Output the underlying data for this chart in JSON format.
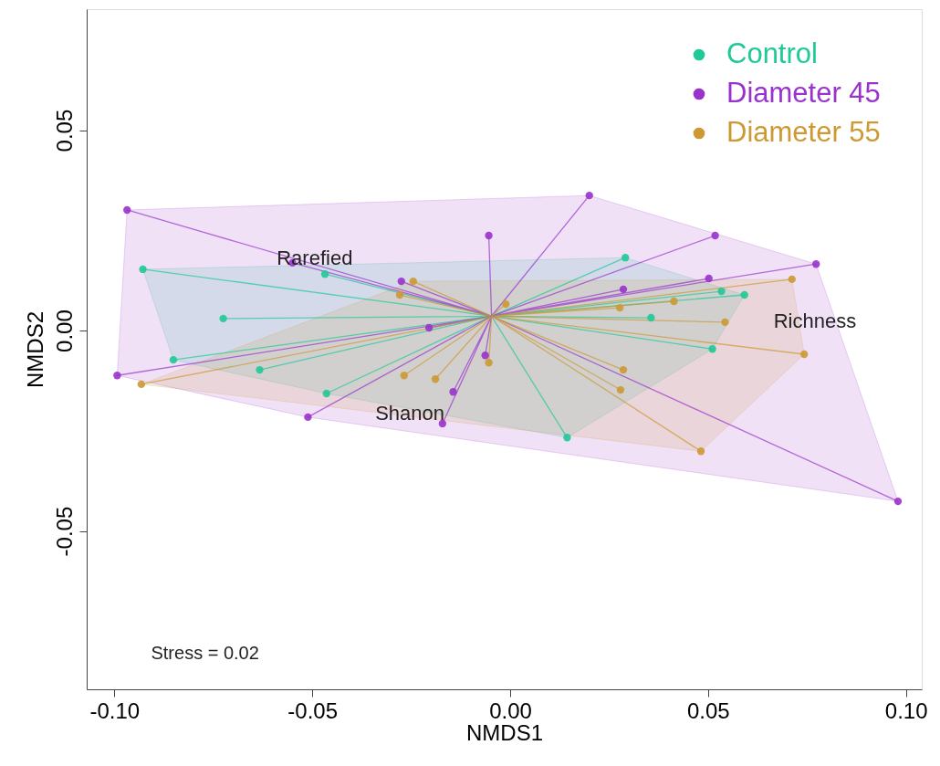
{
  "chart_data": {
    "type": "scatter",
    "xlabel": "NMDS1",
    "ylabel": "NMDS2",
    "xlim": [
      -0.107,
      0.104
    ],
    "ylim": [
      -0.0895,
      0.0802
    ],
    "xticks": [
      {
        "value": -0.1,
        "label": "-0.10"
      },
      {
        "value": -0.05,
        "label": "-0.05"
      },
      {
        "value": 0,
        "label": "0.00"
      },
      {
        "value": 0.05,
        "label": "0.05"
      },
      {
        "value": 0.1,
        "label": "0.10"
      }
    ],
    "yticks": [
      {
        "value": -0.05,
        "label": "-0.05"
      },
      {
        "value": 0,
        "label": "0.00"
      },
      {
        "value": 0.05,
        "label": "0.05"
      }
    ],
    "grid": false,
    "legend": "top right",
    "marker": "circle",
    "annotations": [
      "Rarefied",
      "Richness",
      "Shanon",
      "Stress = 0.02"
    ],
    "series": [
      {
        "type": "line",
        "marker": "none",
        "color": "#20c997",
        "x": [
          -0.0047,
          -0.0928,
          -0.0047,
          -0.0468,
          -0.0047,
          -0.0725,
          -0.0047,
          -0.0851,
          -0.0047,
          -0.0633,
          -0.0047,
          -0.0464,
          -0.0047,
          0.0291,
          -0.0047,
          0.0356,
          -0.0047,
          0.0534,
          -0.0047,
          0.0592,
          -0.0047,
          0.0511,
          -0.0047,
          0.0144
        ],
        "values": [
          0.0036,
          0.0153,
          0.0036,
          0.0141,
          0.0036,
          0.003,
          0.0036,
          -0.0073,
          0.0036,
          -0.0098,
          0.0036,
          -0.0157,
          0.0036,
          0.0182,
          0.0036,
          0.0032,
          0.0036,
          0.0098,
          0.0036,
          0.0089,
          0.0036,
          -0.0046,
          0.0036,
          -0.0267
        ]
      },
      {
        "type": "line",
        "marker": "none",
        "color": "#9933cc",
        "x": [
          -0.0047,
          -0.0968,
          -0.0047,
          -0.0993,
          -0.0047,
          -0.0511,
          -0.0047,
          -0.055,
          -0.0047,
          -0.0275,
          -0.0047,
          -0.0054,
          -0.0047,
          0.02,
          -0.0047,
          -0.0205,
          -0.0047,
          -0.0063,
          -0.0047,
          -0.0144,
          -0.0047,
          -0.0171,
          -0.0047,
          0.0286,
          -0.0047,
          0.0518,
          -0.0047,
          0.0773,
          -0.0047,
          0.0502,
          -0.0047,
          0.098
        ],
        "values": [
          0.0036,
          0.0301,
          0.0036,
          -0.0112,
          0.0036,
          -0.0216,
          0.0036,
          0.0169,
          0.0036,
          0.0123,
          0.0036,
          0.0237,
          0.0036,
          0.0337,
          0.0036,
          0.0007,
          0.0036,
          -0.0062,
          0.0036,
          -0.0153,
          0.0036,
          -0.0232,
          0.0036,
          0.0103,
          0.0036,
          0.0237,
          0.0036,
          0.0166,
          0.0036,
          0.013,
          0.0036,
          -0.0426
        ]
      },
      {
        "type": "line",
        "marker": "none",
        "color": "#cc9933",
        "x": [
          -0.0047,
          -0.0932,
          -0.0047,
          -0.0279,
          -0.0047,
          -0.0245,
          -0.0047,
          -0.0011,
          -0.0047,
          -0.0268,
          -0.0047,
          -0.0189,
          -0.0047,
          -0.0054,
          -0.0047,
          0.0277,
          -0.0047,
          0.0286,
          -0.0047,
          0.0279,
          -0.0047,
          0.0414,
          -0.0047,
          0.0543,
          -0.0047,
          0.0712,
          -0.0047,
          0.0743,
          -0.0047,
          0.0482
        ],
        "values": [
          0.0036,
          -0.0134,
          0.0036,
          0.0089,
          0.0036,
          0.0123,
          0.0036,
          0.0066,
          0.0036,
          -0.0112,
          0.0036,
          -0.0121,
          0.0036,
          -0.008,
          0.0036,
          0.0057,
          0.0036,
          -0.0098,
          0.0036,
          -0.0148,
          0.0036,
          0.0073,
          0.0036,
          0.0021,
          0.0036,
          0.0128,
          0.0036,
          -0.0059,
          0.0036,
          -0.0301
        ]
      },
      {
        "name": "Control",
        "color": "#20c997",
        "x": [
          -0.0928,
          -0.0468,
          -0.0725,
          -0.0851,
          -0.0633,
          -0.0464,
          0.0291,
          0.0356,
          0.0534,
          0.0592,
          0.0511,
          0.0144
        ],
        "values": [
          0.0153,
          0.0141,
          0.003,
          -0.0073,
          -0.0098,
          -0.0157,
          0.0182,
          0.0032,
          0.0098,
          0.0089,
          -0.0046,
          -0.0267
        ]
      },
      {
        "name": "Diameter 45",
        "color": "#9933cc",
        "x": [
          -0.0968,
          -0.0993,
          -0.0511,
          -0.055,
          -0.0275,
          -0.0054,
          0.02,
          -0.0205,
          -0.0063,
          -0.0144,
          -0.0171,
          0.0286,
          0.0518,
          0.0773,
          0.0502,
          0.098
        ],
        "values": [
          0.0301,
          -0.0112,
          -0.0216,
          0.0169,
          0.0123,
          0.0237,
          0.0337,
          0.0007,
          -0.0062,
          -0.0153,
          -0.0232,
          0.0103,
          0.0237,
          0.0166,
          0.013,
          -0.0426
        ]
      },
      {
        "name": "Diameter 55",
        "color": "#cc9933",
        "x": [
          -0.0932,
          -0.0279,
          -0.0245,
          -0.0011,
          -0.0268,
          -0.0189,
          -0.0054,
          0.0277,
          0.0286,
          0.0279,
          0.0414,
          0.0543,
          0.0712,
          0.0743,
          0.0482
        ],
        "values": [
          -0.0134,
          0.0089,
          0.0123,
          0.0066,
          -0.0112,
          -0.0121,
          -0.008,
          0.0057,
          -0.0098,
          -0.0148,
          0.0073,
          0.0021,
          0.0128,
          -0.0059,
          -0.0301
        ]
      }
    ]
  }
}
